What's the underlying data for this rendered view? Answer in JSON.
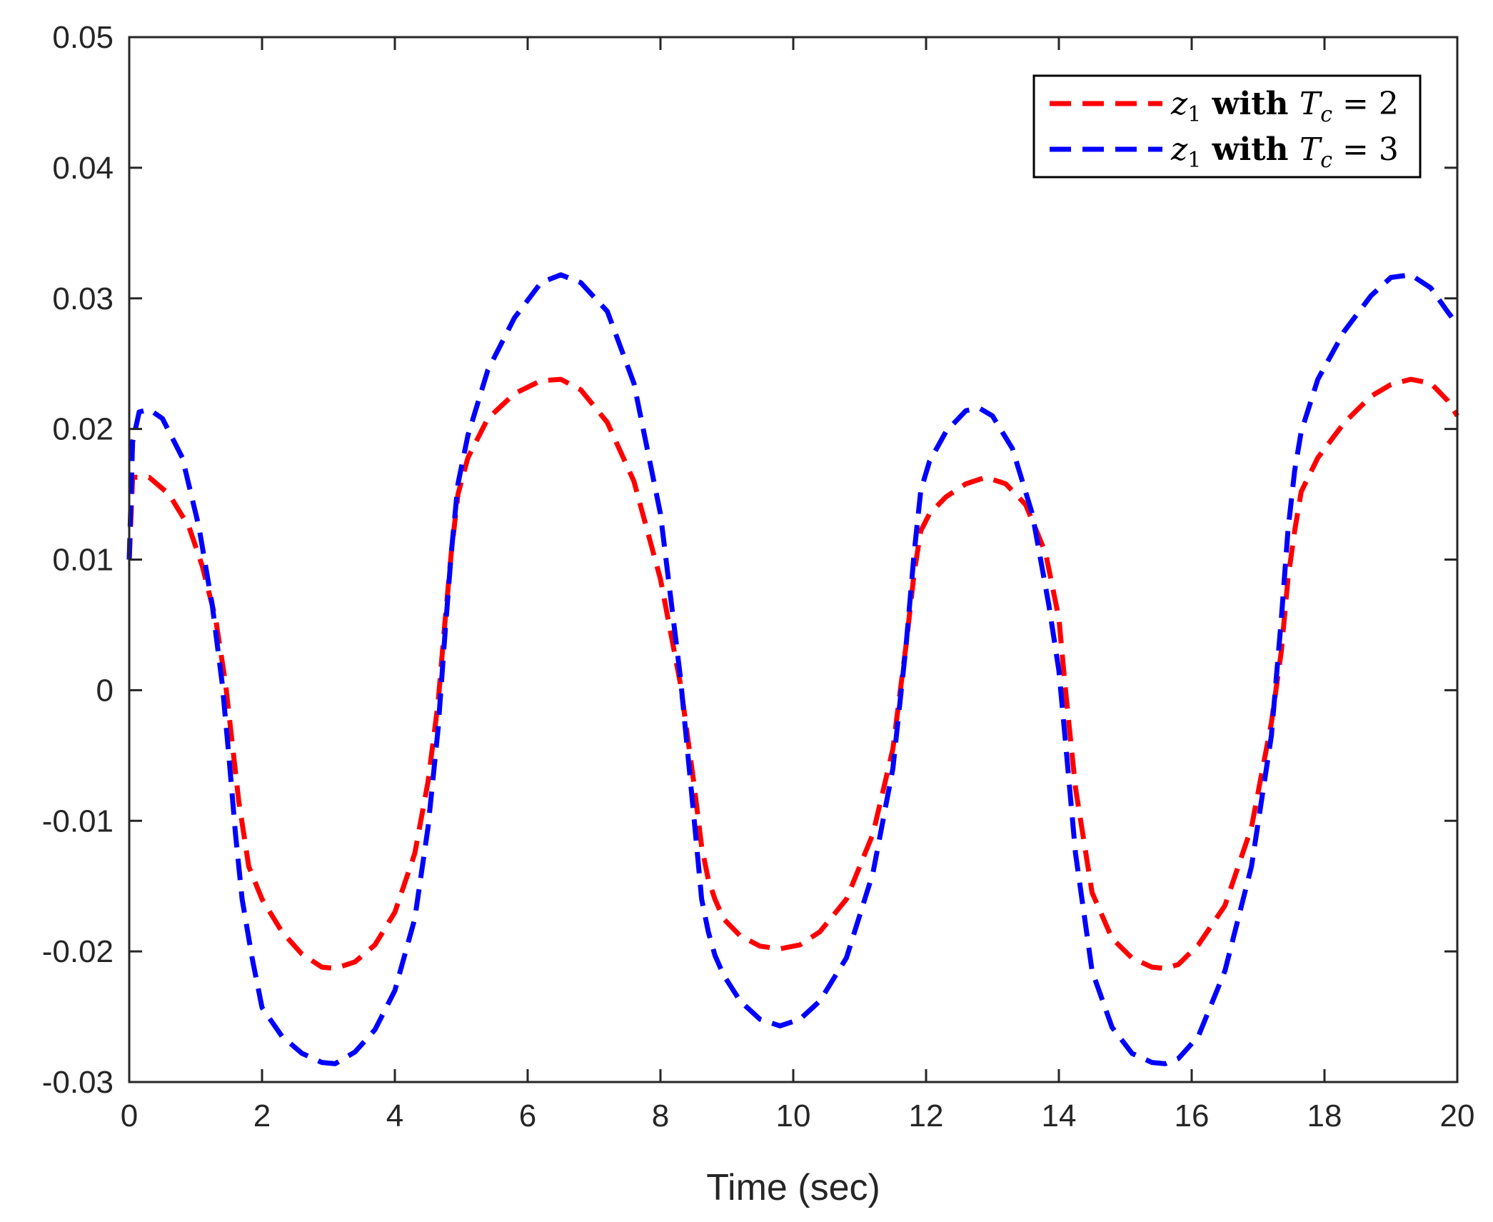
{
  "chart_data": {
    "type": "line",
    "title": "",
    "xlabel": "Time (sec)",
    "ylabel": "",
    "xlim": [
      0,
      20
    ],
    "ylim": [
      -0.03,
      0.05
    ],
    "xticks": [
      0,
      2,
      4,
      6,
      8,
      10,
      12,
      14,
      16,
      18,
      20
    ],
    "xtick_labels": [
      "0",
      "2",
      "4",
      "6",
      "8",
      "10",
      "12",
      "14",
      "16",
      "18",
      "20"
    ],
    "yticks": [
      -0.03,
      -0.02,
      -0.01,
      0,
      0.01,
      0.02,
      0.03,
      0.04,
      0.05
    ],
    "ytick_labels": [
      "-0.03",
      "-0.02",
      "-0.01",
      "0",
      "0.01",
      "0.02",
      "0.03",
      "0.04",
      "0.05"
    ],
    "grid": false,
    "legend_position": "top-right",
    "series": [
      {
        "name": "z1 with Tc = 2",
        "legend": {
          "var": "z",
          "sub": "1",
          "mid": " with ",
          "var2": "T",
          "sub2": "c",
          "rest": " = 2"
        },
        "color": "#ff0000",
        "style": "dashed",
        "x": [
          0,
          0.05,
          0.3,
          0.6,
          0.9,
          1.1,
          1.3,
          1.45,
          1.55,
          1.65,
          1.8,
          2.0,
          2.3,
          2.6,
          2.9,
          3.1,
          3.4,
          3.7,
          4.0,
          4.3,
          4.5,
          4.65,
          4.75,
          4.85,
          4.95,
          5.1,
          5.4,
          5.8,
          6.2,
          6.5,
          6.8,
          7.2,
          7.6,
          8.0,
          8.3,
          8.5,
          8.62,
          8.72,
          8.82,
          8.95,
          9.2,
          9.5,
          9.8,
          10.1,
          10.4,
          10.8,
          11.2,
          11.5,
          11.7,
          11.82,
          11.92,
          12.05,
          12.3,
          12.6,
          12.9,
          13.2,
          13.5,
          13.8,
          14.0,
          14.1,
          14.25,
          14.5,
          14.8,
          15.1,
          15.4,
          15.6,
          15.8,
          16.1,
          16.5,
          16.9,
          17.2,
          17.35,
          17.45,
          17.55,
          17.65,
          17.9,
          18.3,
          18.7,
          19.0,
          19.3,
          19.6,
          19.85,
          20.0
        ],
        "y": [
          0.01,
          0.0163,
          0.0163,
          0.015,
          0.0125,
          0.0095,
          0.0055,
          0.0005,
          -0.004,
          -0.0085,
          -0.0135,
          -0.016,
          -0.0185,
          -0.0202,
          -0.0212,
          -0.0213,
          -0.0208,
          -0.0195,
          -0.017,
          -0.0125,
          -0.007,
          -0.001,
          0.005,
          0.0105,
          0.015,
          0.0178,
          0.0208,
          0.0227,
          0.0237,
          0.0238,
          0.023,
          0.0205,
          0.016,
          0.0085,
          0.0005,
          -0.007,
          -0.012,
          -0.0145,
          -0.016,
          -0.0175,
          -0.0188,
          -0.0196,
          -0.0198,
          -0.0195,
          -0.0185,
          -0.016,
          -0.011,
          -0.0045,
          0.0035,
          0.009,
          0.0122,
          0.0135,
          0.0148,
          0.0158,
          0.0163,
          0.0158,
          0.0142,
          0.0105,
          0.0055,
          0.0,
          -0.0075,
          -0.0155,
          -0.019,
          -0.0205,
          -0.0212,
          -0.0213,
          -0.021,
          -0.0195,
          -0.0165,
          -0.0105,
          -0.0025,
          0.003,
          0.0085,
          0.0122,
          0.0152,
          0.0178,
          0.0205,
          0.0225,
          0.0234,
          0.0238,
          0.0235,
          0.0222,
          0.021
        ]
      },
      {
        "name": "z1 with Tc = 3",
        "legend": {
          "var": "z",
          "sub": "1",
          "mid": " with ",
          "var2": "T",
          "sub2": "c",
          "rest": " = 3"
        },
        "color": "#0000ff",
        "style": "dashed",
        "x": [
          0,
          0.05,
          0.15,
          0.3,
          0.5,
          0.8,
          1.05,
          1.25,
          1.4,
          1.5,
          1.6,
          1.7,
          1.85,
          2.0,
          2.3,
          2.6,
          2.9,
          3.1,
          3.4,
          3.7,
          4.0,
          4.3,
          4.5,
          4.65,
          4.75,
          4.85,
          4.95,
          5.1,
          5.4,
          5.8,
          6.2,
          6.5,
          6.8,
          7.2,
          7.6,
          8.0,
          8.3,
          8.5,
          8.62,
          8.72,
          8.82,
          8.95,
          9.2,
          9.5,
          9.8,
          10.1,
          10.4,
          10.8,
          11.2,
          11.5,
          11.7,
          11.82,
          11.92,
          12.05,
          12.3,
          12.6,
          12.8,
          13.0,
          13.3,
          13.6,
          13.85,
          14.0,
          14.1,
          14.25,
          14.5,
          14.8,
          15.1,
          15.4,
          15.6,
          15.8,
          16.1,
          16.5,
          16.9,
          17.2,
          17.35,
          17.45,
          17.55,
          17.65,
          17.9,
          18.3,
          18.7,
          19.0,
          19.3,
          19.6,
          19.85,
          20.0
        ],
        "y": [
          0.01,
          0.019,
          0.0213,
          0.0215,
          0.0208,
          0.0178,
          0.0125,
          0.0065,
          0.0005,
          -0.005,
          -0.011,
          -0.016,
          -0.0205,
          -0.0243,
          -0.0265,
          -0.0278,
          -0.0285,
          -0.0286,
          -0.0277,
          -0.026,
          -0.023,
          -0.0175,
          -0.0105,
          -0.003,
          0.004,
          0.0105,
          0.0158,
          0.0195,
          0.0245,
          0.0285,
          0.0312,
          0.0318,
          0.0312,
          0.029,
          0.0235,
          0.0135,
          0.001,
          -0.0095,
          -0.016,
          -0.0185,
          -0.0203,
          -0.0218,
          -0.0238,
          -0.0252,
          -0.0257,
          -0.0252,
          -0.0238,
          -0.0205,
          -0.014,
          -0.006,
          0.0035,
          0.0105,
          0.0153,
          0.0175,
          0.0198,
          0.0214,
          0.0216,
          0.021,
          0.0185,
          0.0135,
          0.0065,
          0.0015,
          -0.004,
          -0.0125,
          -0.0215,
          -0.0258,
          -0.0278,
          -0.0285,
          -0.0286,
          -0.0282,
          -0.0265,
          -0.0215,
          -0.0135,
          -0.0035,
          0.0055,
          0.0122,
          0.0168,
          0.0198,
          0.0238,
          0.0275,
          0.0302,
          0.0316,
          0.0318,
          0.0308,
          0.029,
          0.028
        ]
      }
    ]
  }
}
